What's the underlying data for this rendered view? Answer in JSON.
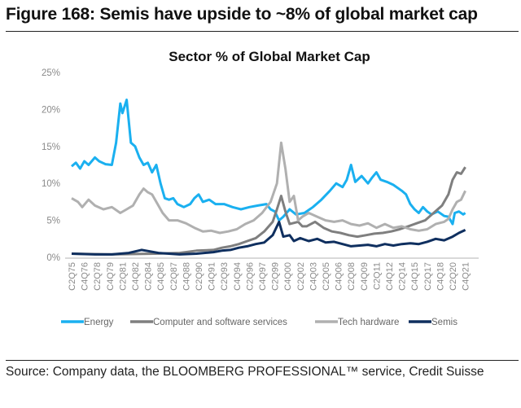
{
  "figure_title": "Figure 168: Semis have upside to ~8% of global market cap",
  "source": "Source: Company data, the BLOOMBERG PROFESSIONAL™ service, Credit Suisse",
  "chart_data": {
    "type": "line",
    "title": "Sector % of Global Market Cap",
    "xlabel": "",
    "ylabel": "",
    "ylim": [
      0,
      25
    ],
    "yticks": [
      "0%",
      "5%",
      "10%",
      "15%",
      "20%",
      "25%"
    ],
    "xrange": [
      "1975Q2",
      "2021Q4"
    ],
    "xticks": [
      "C2Q75",
      "C4Q76",
      "C2Q78",
      "C4Q79",
      "C2Q81",
      "C4Q82",
      "C2Q84",
      "C4Q85",
      "C2Q87",
      "C4Q88",
      "C2Q90",
      "C4Q91",
      "C2Q93",
      "C4Q94",
      "C2Q96",
      "C4Q97",
      "C2Q99",
      "C4Q00",
      "C2Q02",
      "C4Q03",
      "C2Q05",
      "C4Q06",
      "C2Q08",
      "C4Q09",
      "C2Q11",
      "C4Q12",
      "C2Q14",
      "C4Q15",
      "C2Q17",
      "C4Q18",
      "C2Q20",
      "C4Q21"
    ],
    "grid": false,
    "legend": "bottom",
    "series": [
      {
        "name": "Energy",
        "color": "#1ab0f0",
        "points": [
          [
            "1975Q2",
            12.3
          ],
          [
            "1975Q4",
            12.8
          ],
          [
            "1976Q2",
            12.0
          ],
          [
            "1976Q4",
            13.0
          ],
          [
            "1977Q2",
            12.5
          ],
          [
            "1978Q1",
            13.5
          ],
          [
            "1978Q3",
            13.0
          ],
          [
            "1979Q2",
            12.6
          ],
          [
            "1980Q1",
            12.5
          ],
          [
            "1980Q3",
            15.5
          ],
          [
            "1981Q1",
            20.8
          ],
          [
            "1981Q2",
            19.5
          ],
          [
            "1981Q4",
            21.3
          ],
          [
            "1982Q2",
            15.5
          ],
          [
            "1982Q4",
            15.0
          ],
          [
            "1983Q2",
            13.5
          ],
          [
            "1983Q4",
            12.5
          ],
          [
            "1984Q2",
            12.8
          ],
          [
            "1984Q4",
            11.5
          ],
          [
            "1985Q2",
            12.5
          ],
          [
            "1985Q4",
            10.0
          ],
          [
            "1986Q2",
            8.0
          ],
          [
            "1986Q4",
            7.8
          ],
          [
            "1987Q2",
            8.0
          ],
          [
            "1987Q4",
            7.2
          ],
          [
            "1988Q3",
            6.8
          ],
          [
            "1989Q2",
            7.2
          ],
          [
            "1989Q4",
            8.0
          ],
          [
            "1990Q2",
            8.5
          ],
          [
            "1990Q4",
            7.5
          ],
          [
            "1991Q3",
            7.8
          ],
          [
            "1992Q2",
            7.2
          ],
          [
            "1993Q2",
            7.2
          ],
          [
            "1994Q2",
            6.8
          ],
          [
            "1995Q2",
            6.5
          ],
          [
            "1996Q2",
            6.8
          ],
          [
            "1997Q2",
            7.0
          ],
          [
            "1998Q2",
            7.2
          ],
          [
            "1998Q4",
            6.5
          ],
          [
            "1999Q2",
            6.2
          ],
          [
            "1999Q4",
            5.0
          ],
          [
            "2000Q2",
            5.5
          ],
          [
            "2001Q1",
            6.5
          ],
          [
            "2001Q4",
            5.8
          ],
          [
            "2002Q4",
            6.0
          ],
          [
            "2003Q4",
            6.8
          ],
          [
            "2004Q4",
            7.8
          ],
          [
            "2005Q4",
            9.0
          ],
          [
            "2006Q3",
            10.0
          ],
          [
            "2007Q2",
            9.5
          ],
          [
            "2007Q4",
            10.5
          ],
          [
            "2008Q2",
            12.5
          ],
          [
            "2008Q4",
            10.2
          ],
          [
            "2009Q3",
            11.0
          ],
          [
            "2010Q2",
            10.0
          ],
          [
            "2010Q4",
            10.8
          ],
          [
            "2011Q2",
            11.5
          ],
          [
            "2011Q4",
            10.5
          ],
          [
            "2012Q3",
            10.2
          ],
          [
            "2013Q2",
            9.8
          ],
          [
            "2014Q2",
            9.0
          ],
          [
            "2014Q4",
            8.5
          ],
          [
            "2015Q2",
            7.2
          ],
          [
            "2015Q4",
            6.5
          ],
          [
            "2016Q2",
            6.0
          ],
          [
            "2016Q4",
            6.8
          ],
          [
            "2017Q2",
            6.2
          ],
          [
            "2017Q4",
            5.8
          ],
          [
            "2018Q3",
            6.2
          ],
          [
            "2019Q2",
            5.6
          ],
          [
            "2019Q4",
            5.5
          ],
          [
            "2020Q2",
            4.5
          ],
          [
            "2020Q3",
            6.0
          ],
          [
            "2021Q1",
            6.2
          ],
          [
            "2021Q3",
            5.8
          ],
          [
            "2021Q4",
            6.0
          ]
        ]
      },
      {
        "name": "Computer and software services",
        "color": "#7f7f7f",
        "points": [
          [
            "1975Q2",
            0.5
          ],
          [
            "1980Q1",
            0.4
          ],
          [
            "1985Q1",
            0.5
          ],
          [
            "1988Q1",
            0.6
          ],
          [
            "1990Q1",
            0.9
          ],
          [
            "1992Q1",
            1.0
          ],
          [
            "1993Q1",
            1.3
          ],
          [
            "1994Q1",
            1.5
          ],
          [
            "1995Q1",
            1.8
          ],
          [
            "1996Q1",
            2.2
          ],
          [
            "1997Q1",
            2.6
          ],
          [
            "1998Q1",
            3.5
          ],
          [
            "1999Q1",
            4.8
          ],
          [
            "1999Q3",
            6.5
          ],
          [
            "2000Q1",
            8.3
          ],
          [
            "2000Q3",
            6.2
          ],
          [
            "2001Q1",
            4.5
          ],
          [
            "2002Q1",
            4.8
          ],
          [
            "2002Q3",
            4.2
          ],
          [
            "2003Q1",
            4.2
          ],
          [
            "2004Q1",
            4.8
          ],
          [
            "2005Q1",
            4.0
          ],
          [
            "2006Q1",
            3.5
          ],
          [
            "2007Q1",
            3.3
          ],
          [
            "2008Q1",
            3.0
          ],
          [
            "2009Q1",
            2.8
          ],
          [
            "2010Q1",
            3.0
          ],
          [
            "2011Q1",
            3.2
          ],
          [
            "2012Q1",
            3.3
          ],
          [
            "2013Q1",
            3.5
          ],
          [
            "2014Q1",
            3.8
          ],
          [
            "2015Q1",
            4.2
          ],
          [
            "2016Q1",
            4.6
          ],
          [
            "2017Q1",
            5.0
          ],
          [
            "2018Q1",
            6.0
          ],
          [
            "2019Q1",
            7.0
          ],
          [
            "2019Q4",
            8.5
          ],
          [
            "2020Q2",
            10.5
          ],
          [
            "2020Q4",
            11.5
          ],
          [
            "2021Q2",
            11.3
          ],
          [
            "2021Q4",
            12.2
          ]
        ]
      },
      {
        "name": "Tech hardware",
        "color": "#b0b0b0",
        "points": [
          [
            "1975Q2",
            8.0
          ],
          [
            "1976Q1",
            7.5
          ],
          [
            "1976Q3",
            6.8
          ],
          [
            "1977Q2",
            7.8
          ],
          [
            "1978Q1",
            7.0
          ],
          [
            "1979Q1",
            6.5
          ],
          [
            "1980Q1",
            6.8
          ],
          [
            "1981Q1",
            6.0
          ],
          [
            "1981Q4",
            6.5
          ],
          [
            "1982Q3",
            7.0
          ],
          [
            "1983Q2",
            8.5
          ],
          [
            "1983Q4",
            9.3
          ],
          [
            "1984Q2",
            8.8
          ],
          [
            "1984Q4",
            8.5
          ],
          [
            "1985Q3",
            7.0
          ],
          [
            "1986Q1",
            6.0
          ],
          [
            "1986Q4",
            5.0
          ],
          [
            "1987Q4",
            5.0
          ],
          [
            "1988Q4",
            4.6
          ],
          [
            "1989Q4",
            4.0
          ],
          [
            "1990Q4",
            3.5
          ],
          [
            "1991Q4",
            3.6
          ],
          [
            "1992Q4",
            3.3
          ],
          [
            "1993Q4",
            3.5
          ],
          [
            "1994Q4",
            3.8
          ],
          [
            "1995Q4",
            4.5
          ],
          [
            "1996Q4",
            5.0
          ],
          [
            "1997Q4",
            6.0
          ],
          [
            "1998Q4",
            7.5
          ],
          [
            "1999Q3",
            10.0
          ],
          [
            "2000Q1",
            15.5
          ],
          [
            "2000Q3",
            12.0
          ],
          [
            "2001Q1",
            7.5
          ],
          [
            "2001Q3",
            8.3
          ],
          [
            "2002Q1",
            5.0
          ],
          [
            "2002Q3",
            5.5
          ],
          [
            "2003Q2",
            6.0
          ],
          [
            "2004Q2",
            5.5
          ],
          [
            "2005Q2",
            5.0
          ],
          [
            "2006Q2",
            4.8
          ],
          [
            "2007Q2",
            5.0
          ],
          [
            "2008Q2",
            4.5
          ],
          [
            "2009Q2",
            4.3
          ],
          [
            "2010Q2",
            4.6
          ],
          [
            "2011Q2",
            4.0
          ],
          [
            "2012Q2",
            4.5
          ],
          [
            "2013Q2",
            4.0
          ],
          [
            "2014Q2",
            4.2
          ],
          [
            "2015Q2",
            3.8
          ],
          [
            "2016Q2",
            3.6
          ],
          [
            "2017Q2",
            3.8
          ],
          [
            "2018Q2",
            4.5
          ],
          [
            "2019Q2",
            4.8
          ],
          [
            "2019Q4",
            5.2
          ],
          [
            "2020Q2",
            6.5
          ],
          [
            "2020Q4",
            7.5
          ],
          [
            "2021Q2",
            7.8
          ],
          [
            "2021Q4",
            9.0
          ]
        ]
      },
      {
        "name": "Semis",
        "color": "#0f2f5f",
        "points": [
          [
            "1975Q2",
            0.5
          ],
          [
            "1978Q1",
            0.4
          ],
          [
            "1980Q1",
            0.4
          ],
          [
            "1982Q1",
            0.6
          ],
          [
            "1983Q3",
            1.0
          ],
          [
            "1984Q3",
            0.8
          ],
          [
            "1985Q3",
            0.6
          ],
          [
            "1988Q1",
            0.4
          ],
          [
            "1990Q1",
            0.5
          ],
          [
            "1992Q1",
            0.7
          ],
          [
            "1993Q1",
            0.9
          ],
          [
            "1994Q1",
            1.0
          ],
          [
            "1995Q1",
            1.3
          ],
          [
            "1996Q1",
            1.5
          ],
          [
            "1997Q1",
            1.8
          ],
          [
            "1998Q1",
            2.0
          ],
          [
            "1999Q1",
            3.0
          ],
          [
            "1999Q4",
            4.8
          ],
          [
            "2000Q2",
            2.8
          ],
          [
            "2001Q1",
            3.0
          ],
          [
            "2001Q3",
            2.2
          ],
          [
            "2002Q2",
            2.6
          ],
          [
            "2003Q2",
            2.2
          ],
          [
            "2004Q2",
            2.5
          ],
          [
            "2005Q2",
            2.0
          ],
          [
            "2006Q2",
            2.1
          ],
          [
            "2007Q2",
            1.8
          ],
          [
            "2008Q2",
            1.5
          ],
          [
            "2009Q2",
            1.6
          ],
          [
            "2010Q2",
            1.7
          ],
          [
            "2011Q2",
            1.5
          ],
          [
            "2012Q2",
            1.8
          ],
          [
            "2013Q2",
            1.6
          ],
          [
            "2014Q2",
            1.8
          ],
          [
            "2015Q2",
            1.9
          ],
          [
            "2016Q2",
            1.8
          ],
          [
            "2017Q2",
            2.1
          ],
          [
            "2018Q2",
            2.5
          ],
          [
            "2019Q2",
            2.3
          ],
          [
            "2020Q2",
            2.8
          ],
          [
            "2021Q1",
            3.3
          ],
          [
            "2021Q4",
            3.7
          ]
        ]
      }
    ]
  }
}
